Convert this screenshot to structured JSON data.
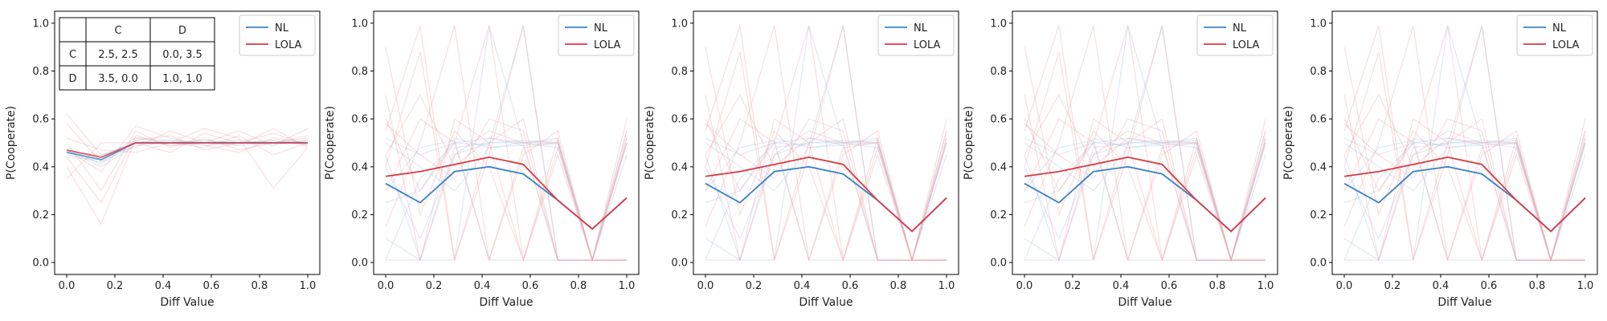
{
  "colors": {
    "nl": "#3b82c4",
    "lola": "#d93a42",
    "nl_faint": "#aac6e2",
    "lola_faint": "#f2a7ad"
  },
  "axes_text": {
    "xlabel": "Diff Value",
    "ylabel": "P(Cooperate)"
  },
  "legend": {
    "nl": "NL",
    "lola": "LOLA"
  },
  "ticks": {
    "x": [
      "0.0",
      "0.2",
      "0.4",
      "0.6",
      "0.8",
      "1.0"
    ],
    "y": [
      "0.0",
      "0.2",
      "0.4",
      "0.6",
      "0.8",
      "1.0"
    ]
  },
  "payoff_table": {
    "header": [
      "",
      "C",
      "D"
    ],
    "rows": [
      [
        "C",
        "2.5, 2.5",
        "0.0, 3.5"
      ],
      [
        "D",
        "3.5, 0.0",
        "1.0, 1.0"
      ]
    ]
  },
  "chart_data": [
    {
      "type": "line",
      "x": [
        0.0,
        0.143,
        0.286,
        0.429,
        0.571,
        0.714,
        0.857,
        1.0
      ],
      "xlabel": "Diff Value",
      "ylabel": "P(Cooperate)",
      "xlim": [
        -0.05,
        1.05
      ],
      "ylim": [
        -0.05,
        1.05
      ],
      "legend_position": "top-right",
      "grid": false,
      "series": [
        {
          "name": "NL",
          "values": [
            0.46,
            0.43,
            0.5,
            0.5,
            0.5,
            0.5,
            0.5,
            0.5
          ]
        },
        {
          "name": "LOLA",
          "values": [
            0.47,
            0.44,
            0.5,
            0.5,
            0.5,
            0.5,
            0.5,
            0.5
          ]
        }
      ],
      "seeds": {
        "NL": [
          [
            0.47,
            0.44,
            0.5,
            0.51,
            0.5,
            0.5,
            0.51,
            0.5
          ],
          [
            0.45,
            0.42,
            0.49,
            0.5,
            0.51,
            0.5,
            0.5,
            0.51
          ],
          [
            0.48,
            0.41,
            0.51,
            0.49,
            0.5,
            0.51,
            0.5,
            0.5
          ],
          [
            0.46,
            0.45,
            0.5,
            0.5,
            0.49,
            0.5,
            0.51,
            0.49
          ],
          [
            0.44,
            0.43,
            0.52,
            0.51,
            0.5,
            0.49,
            0.5,
            0.5
          ],
          [
            0.47,
            0.4,
            0.49,
            0.5,
            0.51,
            0.5,
            0.49,
            0.51
          ]
        ],
        "LOLA": [
          [
            0.5,
            0.3,
            0.55,
            0.48,
            0.52,
            0.47,
            0.5,
            0.53
          ],
          [
            0.4,
            0.16,
            0.52,
            0.5,
            0.48,
            0.53,
            0.45,
            0.5
          ],
          [
            0.62,
            0.45,
            0.48,
            0.55,
            0.5,
            0.49,
            0.56,
            0.48
          ],
          [
            0.35,
            0.5,
            0.5,
            0.46,
            0.54,
            0.5,
            0.5,
            0.52
          ],
          [
            0.47,
            0.38,
            0.57,
            0.52,
            0.49,
            0.46,
            0.52,
            0.5
          ],
          [
            0.52,
            0.47,
            0.46,
            0.5,
            0.56,
            0.52,
            0.31,
            0.48
          ],
          [
            0.44,
            0.25,
            0.53,
            0.49,
            0.5,
            0.55,
            0.49,
            0.56
          ],
          [
            0.58,
            0.42,
            0.51,
            0.53,
            0.47,
            0.5,
            0.54,
            0.49
          ]
        ]
      }
    },
    {
      "type": "line",
      "x": [
        0.0,
        0.143,
        0.286,
        0.429,
        0.571,
        0.714,
        0.857,
        1.0
      ],
      "xlabel": "Diff Value",
      "ylabel": "P(Cooperate)",
      "xlim": [
        -0.05,
        1.05
      ],
      "ylim": [
        -0.05,
        1.05
      ],
      "legend_position": "top-right",
      "grid": false,
      "series": [
        {
          "name": "NL",
          "values": [
            0.33,
            0.25,
            0.38,
            0.4,
            0.37,
            0.26,
            0.14,
            0.27
          ]
        },
        {
          "name": "LOLA",
          "values": [
            0.36,
            0.38,
            0.41,
            0.44,
            0.41,
            0.26,
            0.14,
            0.27
          ]
        }
      ],
      "seeds": {
        "NL": [
          [
            0.52,
            0.45,
            0.5,
            0.52,
            0.49,
            0.5,
            0.01,
            0.52
          ],
          [
            0.1,
            0.01,
            0.48,
            0.5,
            0.5,
            0.51,
            0.01,
            0.01
          ],
          [
            0.45,
            0.01,
            0.01,
            0.99,
            0.5,
            0.48,
            0.01,
            0.5
          ],
          [
            0.3,
            0.48,
            0.51,
            0.01,
            0.01,
            0.01,
            0.01,
            0.01
          ],
          [
            0.5,
            0.4,
            0.3,
            0.48,
            0.5,
            0.52,
            0.01,
            0.45
          ],
          [
            0.25,
            0.3,
            0.52,
            0.48,
            0.49,
            0.01,
            0.01,
            0.01
          ],
          [
            0.4,
            0.1,
            0.45,
            0.5,
            0.51,
            0.5,
            0.01,
            0.55
          ],
          [
            0.01,
            0.35,
            0.5,
            0.49,
            0.99,
            0.01,
            0.01,
            0.01
          ]
        ],
        "LOLA": [
          [
            0.55,
            0.99,
            0.01,
            0.5,
            0.6,
            0.01,
            0.01,
            0.01
          ],
          [
            0.15,
            0.5,
            0.99,
            0.01,
            0.45,
            0.55,
            0.01,
            0.5
          ],
          [
            0.6,
            0.3,
            0.5,
            0.99,
            0.01,
            0.48,
            0.01,
            0.01
          ],
          [
            0.7,
            0.01,
            0.45,
            0.55,
            0.5,
            0.5,
            0.01,
            0.6
          ],
          [
            0.4,
            0.88,
            0.01,
            0.45,
            0.99,
            0.01,
            0.01,
            0.01
          ],
          [
            0.01,
            0.01,
            0.6,
            0.5,
            0.01,
            0.52,
            0.01,
            0.52
          ],
          [
            0.3,
            0.6,
            0.5,
            0.01,
            0.48,
            0.5,
            0.01,
            0.01
          ],
          [
            0.58,
            0.45,
            0.35,
            0.6,
            0.55,
            0.01,
            0.01,
            0.5
          ],
          [
            0.9,
            0.2,
            0.55,
            0.4,
            0.01,
            0.45,
            0.01,
            0.01
          ],
          [
            0.45,
            0.7,
            0.4,
            0.52,
            0.5,
            0.01,
            0.01,
            0.55
          ]
        ]
      }
    },
    {
      "type": "line",
      "x": [
        0.0,
        0.143,
        0.286,
        0.429,
        0.571,
        0.714,
        0.857,
        1.0
      ],
      "xlabel": "Diff Value",
      "ylabel": "P(Cooperate)",
      "xlim": [
        -0.05,
        1.05
      ],
      "ylim": [
        -0.05,
        1.05
      ],
      "legend_position": "top-right",
      "grid": false,
      "series": [
        {
          "name": "NL",
          "values": [
            0.33,
            0.25,
            0.38,
            0.4,
            0.37,
            0.26,
            0.13,
            0.27
          ]
        },
        {
          "name": "LOLA",
          "values": [
            0.36,
            0.38,
            0.41,
            0.44,
            0.41,
            0.26,
            0.13,
            0.27
          ]
        }
      ],
      "seeds": {
        "NL": [
          [
            0.52,
            0.45,
            0.5,
            0.52,
            0.49,
            0.5,
            0.01,
            0.52
          ],
          [
            0.1,
            0.01,
            0.48,
            0.5,
            0.5,
            0.51,
            0.01,
            0.01
          ],
          [
            0.45,
            0.01,
            0.01,
            0.99,
            0.5,
            0.48,
            0.01,
            0.5
          ],
          [
            0.3,
            0.48,
            0.51,
            0.01,
            0.01,
            0.01,
            0.01,
            0.01
          ],
          [
            0.5,
            0.4,
            0.3,
            0.48,
            0.5,
            0.52,
            0.01,
            0.45
          ],
          [
            0.25,
            0.3,
            0.52,
            0.48,
            0.49,
            0.01,
            0.01,
            0.01
          ],
          [
            0.4,
            0.1,
            0.45,
            0.5,
            0.51,
            0.5,
            0.01,
            0.55
          ],
          [
            0.01,
            0.35,
            0.5,
            0.49,
            0.99,
            0.01,
            0.01,
            0.01
          ]
        ],
        "LOLA": [
          [
            0.55,
            0.99,
            0.01,
            0.5,
            0.6,
            0.01,
            0.01,
            0.01
          ],
          [
            0.15,
            0.5,
            0.99,
            0.01,
            0.45,
            0.55,
            0.01,
            0.5
          ],
          [
            0.6,
            0.3,
            0.5,
            0.99,
            0.01,
            0.48,
            0.01,
            0.01
          ],
          [
            0.7,
            0.01,
            0.45,
            0.55,
            0.5,
            0.5,
            0.01,
            0.6
          ],
          [
            0.4,
            0.88,
            0.01,
            0.45,
            0.99,
            0.01,
            0.01,
            0.01
          ],
          [
            0.01,
            0.01,
            0.6,
            0.5,
            0.01,
            0.52,
            0.01,
            0.52
          ],
          [
            0.3,
            0.6,
            0.5,
            0.01,
            0.48,
            0.5,
            0.01,
            0.01
          ],
          [
            0.58,
            0.45,
            0.35,
            0.6,
            0.55,
            0.01,
            0.01,
            0.5
          ],
          [
            0.9,
            0.2,
            0.55,
            0.4,
            0.01,
            0.45,
            0.01,
            0.01
          ],
          [
            0.45,
            0.7,
            0.4,
            0.52,
            0.5,
            0.01,
            0.01,
            0.55
          ]
        ]
      }
    },
    {
      "type": "line",
      "x": [
        0.0,
        0.143,
        0.286,
        0.429,
        0.571,
        0.714,
        0.857,
        1.0
      ],
      "xlabel": "Diff Value",
      "ylabel": "P(Cooperate)",
      "xlim": [
        -0.05,
        1.05
      ],
      "ylim": [
        -0.05,
        1.05
      ],
      "legend_position": "top-right",
      "grid": false,
      "series": [
        {
          "name": "NL",
          "values": [
            0.33,
            0.25,
            0.38,
            0.4,
            0.37,
            0.26,
            0.13,
            0.27
          ]
        },
        {
          "name": "LOLA",
          "values": [
            0.36,
            0.38,
            0.41,
            0.44,
            0.41,
            0.26,
            0.13,
            0.27
          ]
        }
      ],
      "seeds": {
        "NL": [
          [
            0.52,
            0.45,
            0.5,
            0.52,
            0.49,
            0.5,
            0.01,
            0.52
          ],
          [
            0.1,
            0.01,
            0.48,
            0.5,
            0.5,
            0.51,
            0.01,
            0.01
          ],
          [
            0.45,
            0.01,
            0.01,
            0.99,
            0.5,
            0.48,
            0.01,
            0.5
          ],
          [
            0.3,
            0.48,
            0.51,
            0.01,
            0.01,
            0.01,
            0.01,
            0.01
          ],
          [
            0.5,
            0.4,
            0.3,
            0.48,
            0.5,
            0.52,
            0.01,
            0.45
          ],
          [
            0.25,
            0.3,
            0.52,
            0.48,
            0.49,
            0.01,
            0.01,
            0.01
          ],
          [
            0.4,
            0.1,
            0.45,
            0.5,
            0.51,
            0.5,
            0.01,
            0.55
          ],
          [
            0.01,
            0.35,
            0.5,
            0.49,
            0.99,
            0.01,
            0.01,
            0.01
          ]
        ],
        "LOLA": [
          [
            0.55,
            0.99,
            0.01,
            0.5,
            0.6,
            0.01,
            0.01,
            0.01
          ],
          [
            0.15,
            0.5,
            0.99,
            0.01,
            0.45,
            0.55,
            0.01,
            0.5
          ],
          [
            0.6,
            0.3,
            0.5,
            0.99,
            0.01,
            0.48,
            0.01,
            0.01
          ],
          [
            0.7,
            0.01,
            0.45,
            0.55,
            0.5,
            0.5,
            0.01,
            0.6
          ],
          [
            0.4,
            0.88,
            0.01,
            0.45,
            0.99,
            0.01,
            0.01,
            0.01
          ],
          [
            0.01,
            0.01,
            0.6,
            0.5,
            0.01,
            0.52,
            0.01,
            0.52
          ],
          [
            0.3,
            0.6,
            0.5,
            0.01,
            0.48,
            0.5,
            0.01,
            0.01
          ],
          [
            0.58,
            0.45,
            0.35,
            0.6,
            0.55,
            0.01,
            0.01,
            0.5
          ],
          [
            0.9,
            0.2,
            0.55,
            0.4,
            0.01,
            0.45,
            0.01,
            0.01
          ],
          [
            0.45,
            0.7,
            0.4,
            0.52,
            0.5,
            0.01,
            0.01,
            0.55
          ]
        ]
      }
    },
    {
      "type": "line",
      "x": [
        0.0,
        0.143,
        0.286,
        0.429,
        0.571,
        0.714,
        0.857,
        1.0
      ],
      "xlabel": "Diff Value",
      "ylabel": "P(Cooperate)",
      "xlim": [
        -0.05,
        1.05
      ],
      "ylim": [
        -0.05,
        1.05
      ],
      "legend_position": "top-right",
      "grid": false,
      "series": [
        {
          "name": "NL",
          "values": [
            0.33,
            0.25,
            0.38,
            0.4,
            0.37,
            0.26,
            0.13,
            0.27
          ]
        },
        {
          "name": "LOLA",
          "values": [
            0.36,
            0.38,
            0.41,
            0.44,
            0.41,
            0.26,
            0.13,
            0.27
          ]
        }
      ],
      "seeds": {
        "NL": [
          [
            0.52,
            0.45,
            0.5,
            0.52,
            0.49,
            0.5,
            0.01,
            0.52
          ],
          [
            0.1,
            0.01,
            0.48,
            0.5,
            0.5,
            0.51,
            0.01,
            0.01
          ],
          [
            0.45,
            0.01,
            0.01,
            0.99,
            0.5,
            0.48,
            0.01,
            0.5
          ],
          [
            0.3,
            0.48,
            0.51,
            0.01,
            0.01,
            0.01,
            0.01,
            0.01
          ],
          [
            0.5,
            0.4,
            0.3,
            0.48,
            0.5,
            0.52,
            0.01,
            0.45
          ],
          [
            0.25,
            0.3,
            0.52,
            0.48,
            0.49,
            0.01,
            0.01,
            0.01
          ],
          [
            0.4,
            0.1,
            0.45,
            0.5,
            0.51,
            0.5,
            0.01,
            0.55
          ],
          [
            0.01,
            0.35,
            0.5,
            0.49,
            0.99,
            0.01,
            0.01,
            0.01
          ]
        ],
        "LOLA": [
          [
            0.55,
            0.99,
            0.01,
            0.5,
            0.6,
            0.01,
            0.01,
            0.01
          ],
          [
            0.15,
            0.5,
            0.99,
            0.01,
            0.45,
            0.55,
            0.01,
            0.5
          ],
          [
            0.6,
            0.3,
            0.5,
            0.99,
            0.01,
            0.48,
            0.01,
            0.01
          ],
          [
            0.7,
            0.01,
            0.45,
            0.55,
            0.5,
            0.5,
            0.01,
            0.6
          ],
          [
            0.4,
            0.88,
            0.01,
            0.45,
            0.99,
            0.01,
            0.01,
            0.01
          ],
          [
            0.01,
            0.01,
            0.6,
            0.5,
            0.01,
            0.52,
            0.01,
            0.52
          ],
          [
            0.3,
            0.6,
            0.5,
            0.01,
            0.48,
            0.5,
            0.01,
            0.01
          ],
          [
            0.58,
            0.45,
            0.35,
            0.6,
            0.55,
            0.01,
            0.01,
            0.5
          ],
          [
            0.9,
            0.2,
            0.55,
            0.4,
            0.01,
            0.45,
            0.01,
            0.01
          ],
          [
            0.45,
            0.7,
            0.4,
            0.52,
            0.5,
            0.01,
            0.01,
            0.55
          ]
        ]
      }
    }
  ]
}
